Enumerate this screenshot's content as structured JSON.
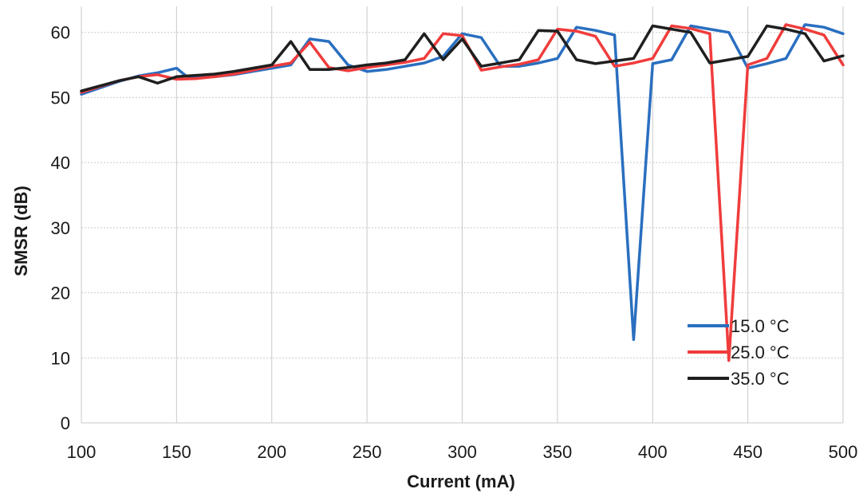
{
  "chart_data": {
    "type": "line",
    "title": "",
    "xlabel": "Current (mA)",
    "ylabel": "SMSR (dB)",
    "xlim": [
      100,
      500
    ],
    "ylim": [
      0,
      64
    ],
    "xticks": [
      100,
      150,
      200,
      250,
      300,
      350,
      400,
      450,
      500
    ],
    "yticks": [
      0,
      10,
      20,
      30,
      40,
      50,
      60
    ],
    "grid": true,
    "legend": "bottom-right",
    "series": [
      {
        "name": "15.0 °C",
        "color": "#2a6fc0",
        "x": [
          100,
          110,
          120,
          130,
          140,
          150,
          155,
          160,
          170,
          180,
          190,
          200,
          210,
          220,
          230,
          240,
          250,
          260,
          270,
          280,
          290,
          300,
          310,
          320,
          330,
          340,
          350,
          360,
          370,
          380,
          390,
          400,
          410,
          420,
          430,
          440,
          450,
          460,
          470,
          480,
          490,
          500
        ],
        "y": [
          50.5,
          51.5,
          52.5,
          53.3,
          53.8,
          54.5,
          53.3,
          53.0,
          53.2,
          53.5,
          54.0,
          54.5,
          55.0,
          59.0,
          58.6,
          55.0,
          54.0,
          54.3,
          54.8,
          55.3,
          56.3,
          59.8,
          59.2,
          54.8,
          54.8,
          55.3,
          56.0,
          60.8,
          60.3,
          59.6,
          12.8,
          55.2,
          55.8,
          61.0,
          60.5,
          60.0,
          54.5,
          55.2,
          56.0,
          61.2,
          60.8,
          59.8
        ]
      },
      {
        "name": "25.0 °C",
        "color": "#f03c3c",
        "x": [
          100,
          110,
          120,
          130,
          140,
          150,
          160,
          170,
          180,
          190,
          200,
          210,
          220,
          230,
          240,
          250,
          260,
          270,
          280,
          290,
          300,
          310,
          320,
          330,
          340,
          350,
          360,
          370,
          380,
          390,
          400,
          410,
          420,
          430,
          440,
          450,
          460,
          470,
          480,
          490,
          500
        ],
        "y": [
          50.8,
          51.7,
          52.6,
          53.2,
          53.5,
          52.8,
          52.9,
          53.2,
          53.6,
          54.2,
          54.8,
          55.3,
          58.5,
          54.6,
          54.1,
          54.6,
          55.0,
          55.4,
          56.0,
          59.8,
          59.5,
          54.2,
          54.7,
          55.1,
          55.8,
          60.5,
          60.2,
          59.4,
          54.8,
          55.3,
          56.0,
          61.0,
          60.6,
          59.8,
          9.6,
          55.0,
          56.0,
          61.2,
          60.5,
          59.6,
          55.0
        ]
      },
      {
        "name": "35.0 °C",
        "color": "#1f1f1f",
        "x": [
          100,
          110,
          120,
          130,
          140,
          150,
          160,
          170,
          180,
          190,
          200,
          210,
          220,
          230,
          240,
          250,
          260,
          270,
          280,
          290,
          300,
          310,
          320,
          330,
          340,
          350,
          360,
          370,
          380,
          390,
          400,
          410,
          420,
          430,
          440,
          450,
          460,
          470,
          480,
          490,
          500
        ],
        "y": [
          51.0,
          51.8,
          52.6,
          53.2,
          52.2,
          53.2,
          53.4,
          53.6,
          54.0,
          54.5,
          55.0,
          58.6,
          54.3,
          54.3,
          54.6,
          55.0,
          55.3,
          55.8,
          59.8,
          55.8,
          59.0,
          54.8,
          55.3,
          55.8,
          60.3,
          60.2,
          55.8,
          55.2,
          55.6,
          56.0,
          61.0,
          60.5,
          60.0,
          55.3,
          55.8,
          56.3,
          61.0,
          60.5,
          59.8,
          55.6,
          56.4
        ]
      }
    ]
  }
}
